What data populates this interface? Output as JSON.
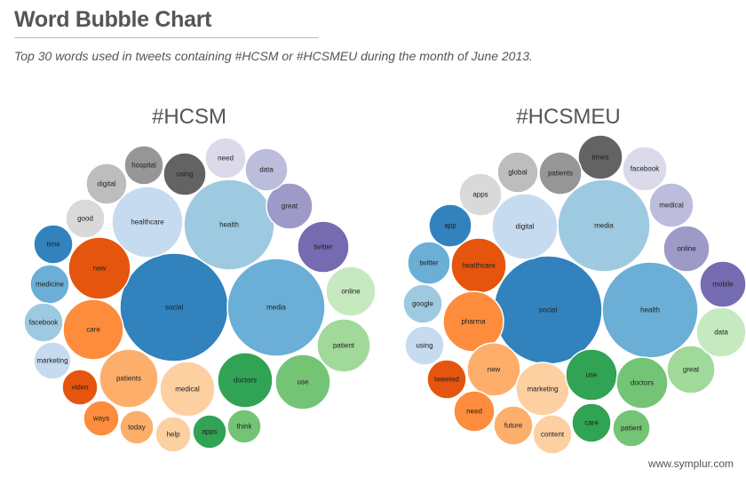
{
  "header": {
    "title": "Word Bubble Chart",
    "subtitle": "Top 30 words used in tweets containing #HCSM or #HCSMEU during the month of June 2013."
  },
  "footer": {
    "source": "www.symplur.com"
  },
  "chart_data": [
    {
      "type": "bubble",
      "title": "#HCSM",
      "words": [
        {
          "word": "social",
          "color": "#3182bd"
        },
        {
          "word": "media",
          "color": "#6baed6"
        },
        {
          "word": "health",
          "color": "#9ecae1"
        },
        {
          "word": "healthcare",
          "color": "#c6dbef"
        },
        {
          "word": "new",
          "color": "#e6550d"
        },
        {
          "word": "care",
          "color": "#fd8d3c"
        },
        {
          "word": "patients",
          "color": "#fdae6b"
        },
        {
          "word": "medical",
          "color": "#fdd0a2"
        },
        {
          "word": "doctors",
          "color": "#31a354"
        },
        {
          "word": "use",
          "color": "#74c476"
        },
        {
          "word": "patient",
          "color": "#a1d99b"
        },
        {
          "word": "online",
          "color": "#c7e9c0"
        },
        {
          "word": "twitter",
          "color": "#756bb1"
        },
        {
          "word": "great",
          "color": "#9e9ac8"
        },
        {
          "word": "data",
          "color": "#bcbddc"
        },
        {
          "word": "need",
          "color": "#dadaeb"
        },
        {
          "word": "using",
          "color": "#636363"
        },
        {
          "word": "hospital",
          "color": "#969696"
        },
        {
          "word": "digital",
          "color": "#bdbdbd"
        },
        {
          "word": "good",
          "color": "#d9d9d9"
        },
        {
          "word": "time",
          "color": "#3182bd"
        },
        {
          "word": "medicine",
          "color": "#6baed6"
        },
        {
          "word": "facebook",
          "color": "#9ecae1"
        },
        {
          "word": "marketing",
          "color": "#c6dbef"
        },
        {
          "word": "video",
          "color": "#e6550d"
        },
        {
          "word": "ways",
          "color": "#fd8d3c"
        },
        {
          "word": "today",
          "color": "#fdae6b"
        },
        {
          "word": "help",
          "color": "#fdd0a2"
        },
        {
          "word": "apps",
          "color": "#31a354"
        },
        {
          "word": "think",
          "color": "#74c476"
        }
      ]
    },
    {
      "type": "bubble",
      "title": "#HCSMEU",
      "words": [
        {
          "word": "social",
          "color": "#3182bd"
        },
        {
          "word": "health",
          "color": "#6baed6"
        },
        {
          "word": "media",
          "color": "#9ecae1"
        },
        {
          "word": "digital",
          "color": "#c6dbef"
        },
        {
          "word": "healthcare",
          "color": "#e6550d"
        },
        {
          "word": "pharma",
          "color": "#fd8d3c"
        },
        {
          "word": "new",
          "color": "#fdae6b"
        },
        {
          "word": "marketing",
          "color": "#fdd0a2"
        },
        {
          "word": "use",
          "color": "#31a354"
        },
        {
          "word": "doctors",
          "color": "#74c476"
        },
        {
          "word": "great",
          "color": "#a1d99b"
        },
        {
          "word": "data",
          "color": "#c7e9c0"
        },
        {
          "word": "mobile",
          "color": "#756bb1"
        },
        {
          "word": "online",
          "color": "#9e9ac8"
        },
        {
          "word": "medical",
          "color": "#bcbddc"
        },
        {
          "word": "facebook",
          "color": "#dadaeb"
        },
        {
          "word": "times",
          "color": "#636363"
        },
        {
          "word": "patients",
          "color": "#969696"
        },
        {
          "word": "global",
          "color": "#bdbdbd"
        },
        {
          "word": "apps",
          "color": "#d9d9d9"
        },
        {
          "word": "app",
          "color": "#3182bd"
        },
        {
          "word": "twitter",
          "color": "#6baed6"
        },
        {
          "word": "google",
          "color": "#9ecae1"
        },
        {
          "word": "using",
          "color": "#c6dbef"
        },
        {
          "word": "tweeted",
          "color": "#e6550d"
        },
        {
          "word": "need",
          "color": "#fd8d3c"
        },
        {
          "word": "future",
          "color": "#fdae6b"
        },
        {
          "word": "content",
          "color": "#fdd0a2"
        },
        {
          "word": "care",
          "color": "#31a354"
        },
        {
          "word": "patient",
          "color": "#74c476"
        }
      ]
    }
  ]
}
